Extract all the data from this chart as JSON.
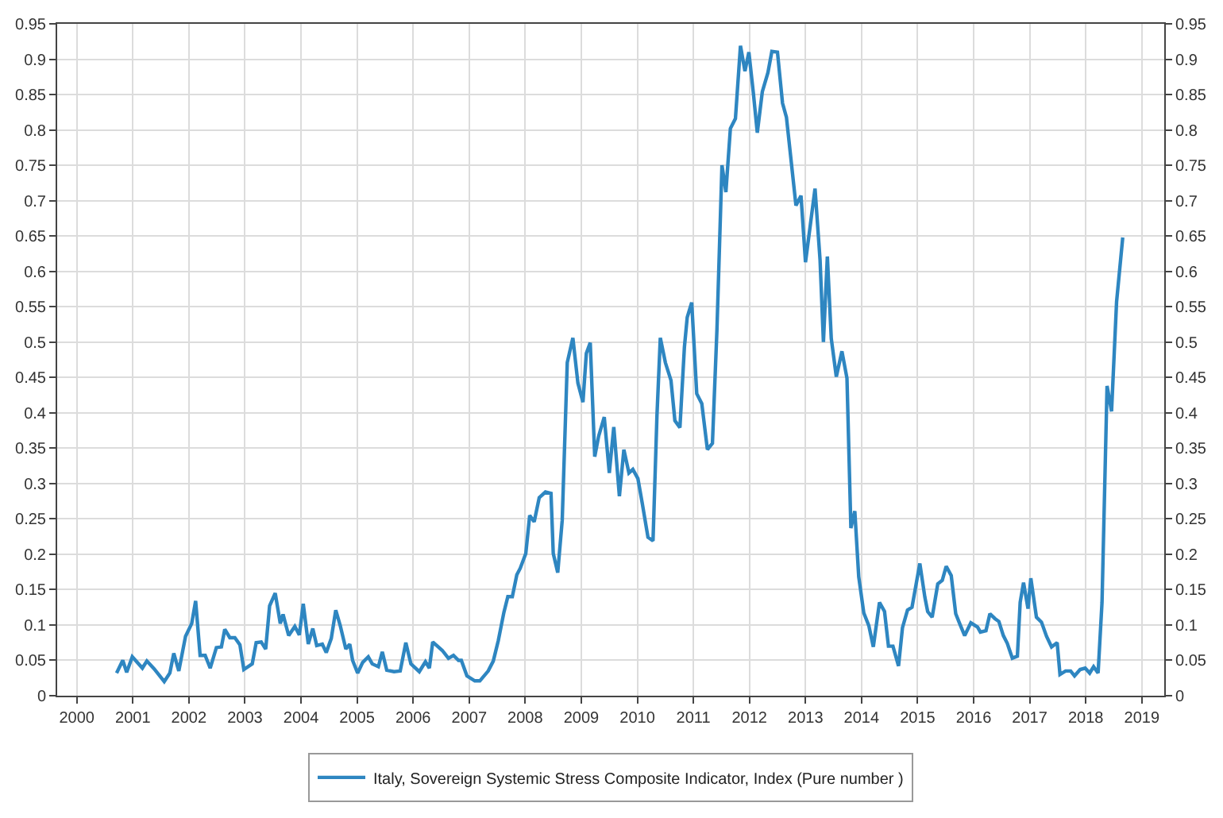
{
  "chart_data": {
    "type": "line",
    "series": [
      {
        "name": "Italy, Sovereign Systemic Stress Composite Indicator, Index (Pure number )",
        "color": "#2e86c1",
        "x": [
          2000.71,
          2000.82,
          2000.89,
          2000.99,
          2001.17,
          2001.25,
          2001.38,
          2001.56,
          2001.66,
          2001.73,
          2001.82,
          2001.94,
          2002.05,
          2002.12,
          2002.2,
          2002.29,
          2002.38,
          2002.49,
          2002.58,
          2002.64,
          2002.73,
          2002.82,
          2002.91,
          2002.98,
          2003.13,
          2003.2,
          2003.29,
          2003.37,
          2003.44,
          2003.54,
          2003.63,
          2003.68,
          2003.78,
          2003.89,
          2003.97,
          2004.04,
          2004.13,
          2004.21,
          2004.28,
          2004.38,
          2004.45,
          2004.54,
          2004.62,
          2004.7,
          2004.8,
          2004.87,
          2004.92,
          2005.01,
          2005.1,
          2005.2,
          2005.27,
          2005.38,
          2005.45,
          2005.53,
          2005.66,
          2005.77,
          2005.87,
          2005.96,
          2006.11,
          2006.22,
          2006.29,
          2006.35,
          2006.52,
          2006.63,
          2006.72,
          2006.81,
          2006.86,
          2006.96,
          2007.1,
          2007.19,
          2007.34,
          2007.43,
          2007.52,
          2007.62,
          2007.69,
          2007.77,
          2007.85,
          2007.91,
          2008.01,
          2008.08,
          2008.16,
          2008.25,
          2008.36,
          2008.46,
          2008.5,
          2008.58,
          2008.66,
          2008.75,
          2008.85,
          2008.94,
          2009.03,
          2009.09,
          2009.16,
          2009.24,
          2009.31,
          2009.41,
          2009.5,
          2009.58,
          2009.68,
          2009.76,
          2009.85,
          2009.92,
          2010.01,
          2010.09,
          2010.19,
          2010.28,
          2010.35,
          2010.41,
          2010.5,
          2010.6,
          2010.67,
          2010.76,
          2010.84,
          2010.89,
          2010.97,
          2011.06,
          2011.15,
          2011.25,
          2011.34,
          2011.42,
          2011.51,
          2011.58,
          2011.66,
          2011.75,
          2011.84,
          2011.92,
          2011.99,
          2012.07,
          2012.14,
          2012.23,
          2012.33,
          2012.4,
          2012.5,
          2012.59,
          2012.66,
          2012.83,
          2012.92,
          2013.0,
          2013.17,
          2013.26,
          2013.32,
          2013.39,
          2013.46,
          2013.55,
          2013.65,
          2013.74,
          2013.81,
          2013.88,
          2013.95,
          2014.04,
          2014.13,
          2014.21,
          2014.32,
          2014.41,
          2014.48,
          2014.56,
          2014.66,
          2014.73,
          2014.82,
          2014.9,
          2015.04,
          2015.13,
          2015.18,
          2015.26,
          2015.36,
          2015.44,
          2015.51,
          2015.6,
          2015.68,
          2015.75,
          2015.84,
          2015.95,
          2016.07,
          2016.12,
          2016.22,
          2016.29,
          2016.38,
          2016.45,
          2016.53,
          2016.6,
          2016.69,
          2016.78,
          2016.83,
          2016.89,
          2016.97,
          2017.02,
          2017.12,
          2017.21,
          2017.3,
          2017.39,
          2017.49,
          2017.54,
          2017.64,
          2017.73,
          2017.8,
          2017.9,
          2017.99,
          2018.07,
          2018.14,
          2018.22,
          2018.29,
          2018.38,
          2018.46,
          2018.55,
          2018.66
        ],
        "values": [
          0.032,
          0.05,
          0.033,
          0.055,
          0.039,
          0.049,
          0.038,
          0.02,
          0.032,
          0.06,
          0.035,
          0.084,
          0.102,
          0.134,
          0.057,
          0.057,
          0.039,
          0.068,
          0.069,
          0.094,
          0.082,
          0.082,
          0.072,
          0.037,
          0.045,
          0.075,
          0.076,
          0.066,
          0.127,
          0.145,
          0.102,
          0.115,
          0.085,
          0.098,
          0.086,
          0.13,
          0.073,
          0.095,
          0.071,
          0.073,
          0.061,
          0.081,
          0.121,
          0.099,
          0.066,
          0.073,
          0.05,
          0.032,
          0.047,
          0.055,
          0.045,
          0.041,
          0.062,
          0.036,
          0.034,
          0.035,
          0.075,
          0.045,
          0.034,
          0.048,
          0.039,
          0.076,
          0.064,
          0.053,
          0.057,
          0.05,
          0.05,
          0.028,
          0.021,
          0.021,
          0.035,
          0.049,
          0.078,
          0.118,
          0.14,
          0.14,
          0.171,
          0.18,
          0.201,
          0.255,
          0.246,
          0.28,
          0.288,
          0.286,
          0.201,
          0.174,
          0.248,
          0.471,
          0.506,
          0.442,
          0.415,
          0.484,
          0.499,
          0.338,
          0.367,
          0.394,
          0.315,
          0.38,
          0.282,
          0.348,
          0.315,
          0.32,
          0.307,
          0.271,
          0.224,
          0.219,
          0.396,
          0.506,
          0.471,
          0.446,
          0.389,
          0.379,
          0.493,
          0.535,
          0.556,
          0.427,
          0.413,
          0.348,
          0.357,
          0.517,
          0.75,
          0.712,
          0.802,
          0.816,
          0.919,
          0.883,
          0.91,
          0.852,
          0.796,
          0.854,
          0.881,
          0.911,
          0.91,
          0.838,
          0.818,
          0.693,
          0.707,
          0.613,
          0.717,
          0.616,
          0.5,
          0.621,
          0.505,
          0.451,
          0.487,
          0.449,
          0.237,
          0.261,
          0.168,
          0.117,
          0.099,
          0.069,
          0.132,
          0.119,
          0.07,
          0.07,
          0.042,
          0.096,
          0.121,
          0.125,
          0.187,
          0.139,
          0.119,
          0.111,
          0.158,
          0.163,
          0.183,
          0.17,
          0.116,
          0.102,
          0.085,
          0.103,
          0.097,
          0.09,
          0.092,
          0.116,
          0.109,
          0.105,
          0.085,
          0.074,
          0.053,
          0.056,
          0.132,
          0.16,
          0.123,
          0.166,
          0.111,
          0.104,
          0.084,
          0.069,
          0.075,
          0.03,
          0.035,
          0.035,
          0.028,
          0.037,
          0.039,
          0.032,
          0.041,
          0.032,
          0.132,
          0.438,
          0.402,
          0.557,
          0.648
        ]
      }
    ],
    "xlim": [
      1999.65,
      2019.4
    ],
    "xticks": [
      2000,
      2001,
      2002,
      2003,
      2004,
      2005,
      2006,
      2007,
      2008,
      2009,
      2010,
      2011,
      2012,
      2013,
      2014,
      2015,
      2016,
      2017,
      2018,
      2019
    ],
    "ylim": [
      0,
      0.95
    ],
    "yticks": [
      0,
      0.05,
      0.1,
      0.15,
      0.2,
      0.25,
      0.3,
      0.35,
      0.4,
      0.45,
      0.5,
      0.55,
      0.6,
      0.65,
      0.7,
      0.75,
      0.8,
      0.85,
      0.9,
      0.95
    ],
    "y2lim": [
      0,
      0.95
    ],
    "y2ticks": [
      0,
      0.05,
      0.1,
      0.15,
      0.2,
      0.25,
      0.3,
      0.35,
      0.4,
      0.45,
      0.5,
      0.55,
      0.6,
      0.65,
      0.7,
      0.75,
      0.8,
      0.85,
      0.9,
      0.95
    ],
    "grid": true,
    "legend": "bottom",
    "marker": "none",
    "line_style": "solid"
  }
}
